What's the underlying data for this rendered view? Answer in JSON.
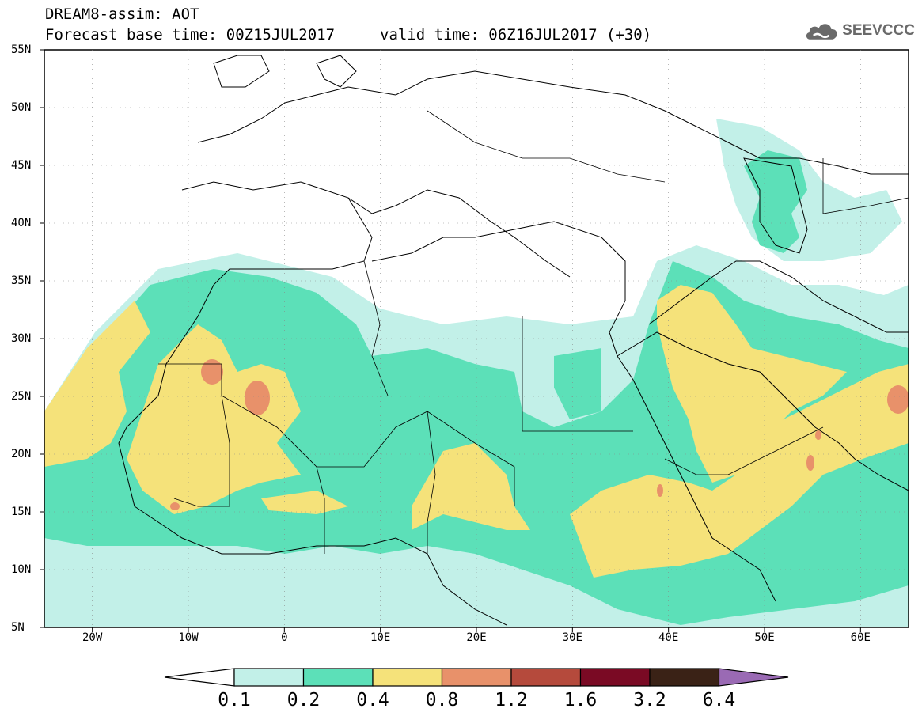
{
  "header": {
    "line1": "DREAM8-assim: AOT",
    "line2": "Forecast base time: 00Z15JUL2017",
    "line2b": "valid time: 06Z16JUL2017 (+30)"
  },
  "logo": {
    "text": "SEEVCCC",
    "icon": "cloud-icon",
    "color": "#6a6a6a"
  },
  "map": {
    "type": "aerosol-optical-thickness",
    "lon_range": [
      -25,
      65
    ],
    "lat_range": [
      5,
      55
    ],
    "lat_labels": [
      "55N",
      "50N",
      "45N",
      "40N",
      "35N",
      "30N",
      "25N",
      "20N",
      "15N",
      "10N",
      "5N"
    ],
    "lon_labels": [
      "20W",
      "10W",
      "0",
      "10E",
      "20E",
      "30E",
      "40E",
      "50E",
      "60E"
    ]
  },
  "colorbar": {
    "labels": [
      "0.1",
      "0.2",
      "0.4",
      "0.8",
      "1.2",
      "1.6",
      "3.2",
      "6.4"
    ],
    "colors": [
      "#c2f0e8",
      "#5ce0b8",
      "#f5e27a",
      "#e8916a",
      "#b54a3c",
      "#7a0a24",
      "#3a2216",
      "#9a6ab4"
    ]
  }
}
